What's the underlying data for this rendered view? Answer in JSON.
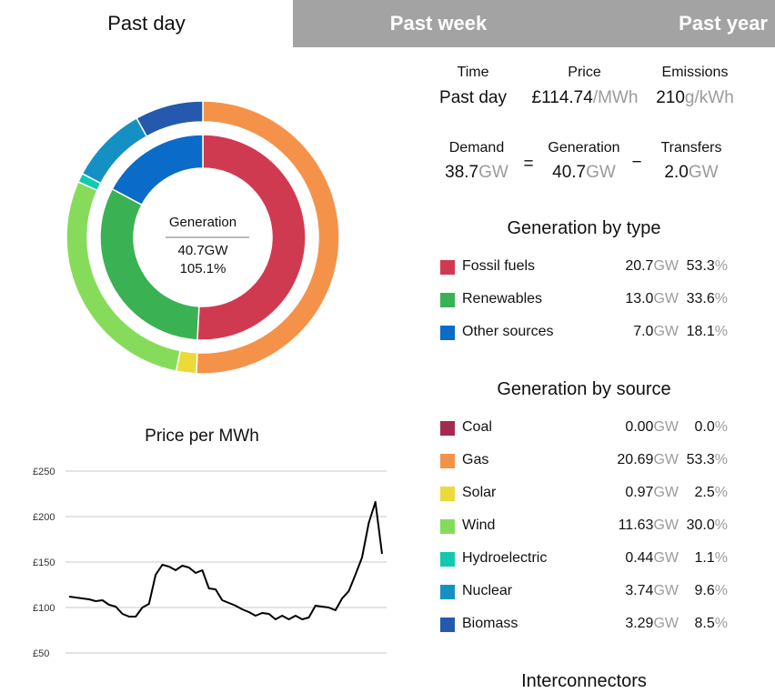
{
  "tabs": [
    {
      "label": "Past day"
    },
    {
      "label": "Past week"
    },
    {
      "label": "Past year"
    }
  ],
  "summary": {
    "time": {
      "header": "Time",
      "value": "Past day"
    },
    "price": {
      "header": "Price",
      "value": "£114.74",
      "unit": "/MWh"
    },
    "emissions": {
      "header": "Emissions",
      "value": "210",
      "unit": "g/kWh"
    },
    "demand": {
      "header": "Demand",
      "value": "38.7",
      "unit": "GW"
    },
    "generation": {
      "header": "Generation",
      "value": "40.7",
      "unit": "GW"
    },
    "transfers": {
      "header": "Transfers",
      "value": "2.0",
      "unit": "GW"
    },
    "equals": "=",
    "minus": "−"
  },
  "donut_center": {
    "label": "Generation",
    "value": "40.7GW",
    "percent": "105.1%"
  },
  "by_type": {
    "title": "Generation by type",
    "rows": [
      {
        "label": "Fossil fuels",
        "gw": "20.7",
        "pct": "53.3",
        "color": "#d03a50"
      },
      {
        "label": "Renewables",
        "gw": "13.0",
        "pct": "33.6",
        "color": "#3ab253"
      },
      {
        "label": "Other sources",
        "gw": "7.0",
        "pct": "18.1",
        "color": "#0a6bc9"
      }
    ]
  },
  "by_source": {
    "title": "Generation by source",
    "rows": [
      {
        "label": "Coal",
        "gw": "0.00",
        "pct": "0.0",
        "color": "#a52a4f"
      },
      {
        "label": "Gas",
        "gw": "20.69",
        "pct": "53.3",
        "color": "#f5924a"
      },
      {
        "label": "Solar",
        "gw": "0.97",
        "pct": "2.5",
        "color": "#ecd93a"
      },
      {
        "label": "Wind",
        "gw": "11.63",
        "pct": "30.0",
        "color": "#86dc5a"
      },
      {
        "label": "Hydroelectric",
        "gw": "0.44",
        "pct": "1.1",
        "color": "#12c9b0"
      },
      {
        "label": "Nuclear",
        "gw": "3.74",
        "pct": "9.6",
        "color": "#1590c4"
      },
      {
        "label": "Biomass",
        "gw": "3.29",
        "pct": "8.5",
        "color": "#2459ad"
      }
    ]
  },
  "units": {
    "gw": "GW",
    "pct": "%"
  },
  "interconnectors": {
    "title": "Interconnectors"
  },
  "chart_data": [
    {
      "type": "pie",
      "subtype": "nested-donut",
      "title": "",
      "inner": {
        "categories": [
          "Fossil fuels",
          "Renewables",
          "Other sources"
        ],
        "values": [
          20.7,
          13.0,
          7.0
        ],
        "colors": [
          "#d03a50",
          "#3ab253",
          "#0a6bc9"
        ]
      },
      "outer": {
        "categories": [
          "Coal",
          "Gas",
          "Solar",
          "Wind",
          "Hydroelectric",
          "Nuclear",
          "Biomass"
        ],
        "values": [
          0.0,
          20.69,
          0.97,
          11.63,
          0.44,
          3.74,
          3.29
        ],
        "colors": [
          "#a52a4f",
          "#f5924a",
          "#ecd93a",
          "#86dc5a",
          "#12c9b0",
          "#1590c4",
          "#2459ad"
        ]
      }
    },
    {
      "type": "line",
      "title": "Price per MWh",
      "xlabel": "",
      "ylabel": "",
      "ylim": [
        50,
        250
      ],
      "yticks": [
        "£250",
        "£200",
        "£150",
        "£100",
        "£50"
      ],
      "ytick_values": [
        250,
        200,
        150,
        100,
        50
      ],
      "grid": true,
      "values": [
        112,
        111,
        110,
        109,
        107,
        108,
        103,
        101,
        93,
        90,
        90,
        100,
        104,
        136,
        147,
        145,
        141,
        146,
        144,
        138,
        141,
        121,
        120,
        108,
        105,
        102,
        98,
        95,
        91,
        94,
        93,
        87,
        91,
        87,
        91,
        87,
        89,
        102,
        101,
        100,
        97,
        110,
        118,
        136,
        155,
        193,
        216,
        159
      ]
    }
  ]
}
